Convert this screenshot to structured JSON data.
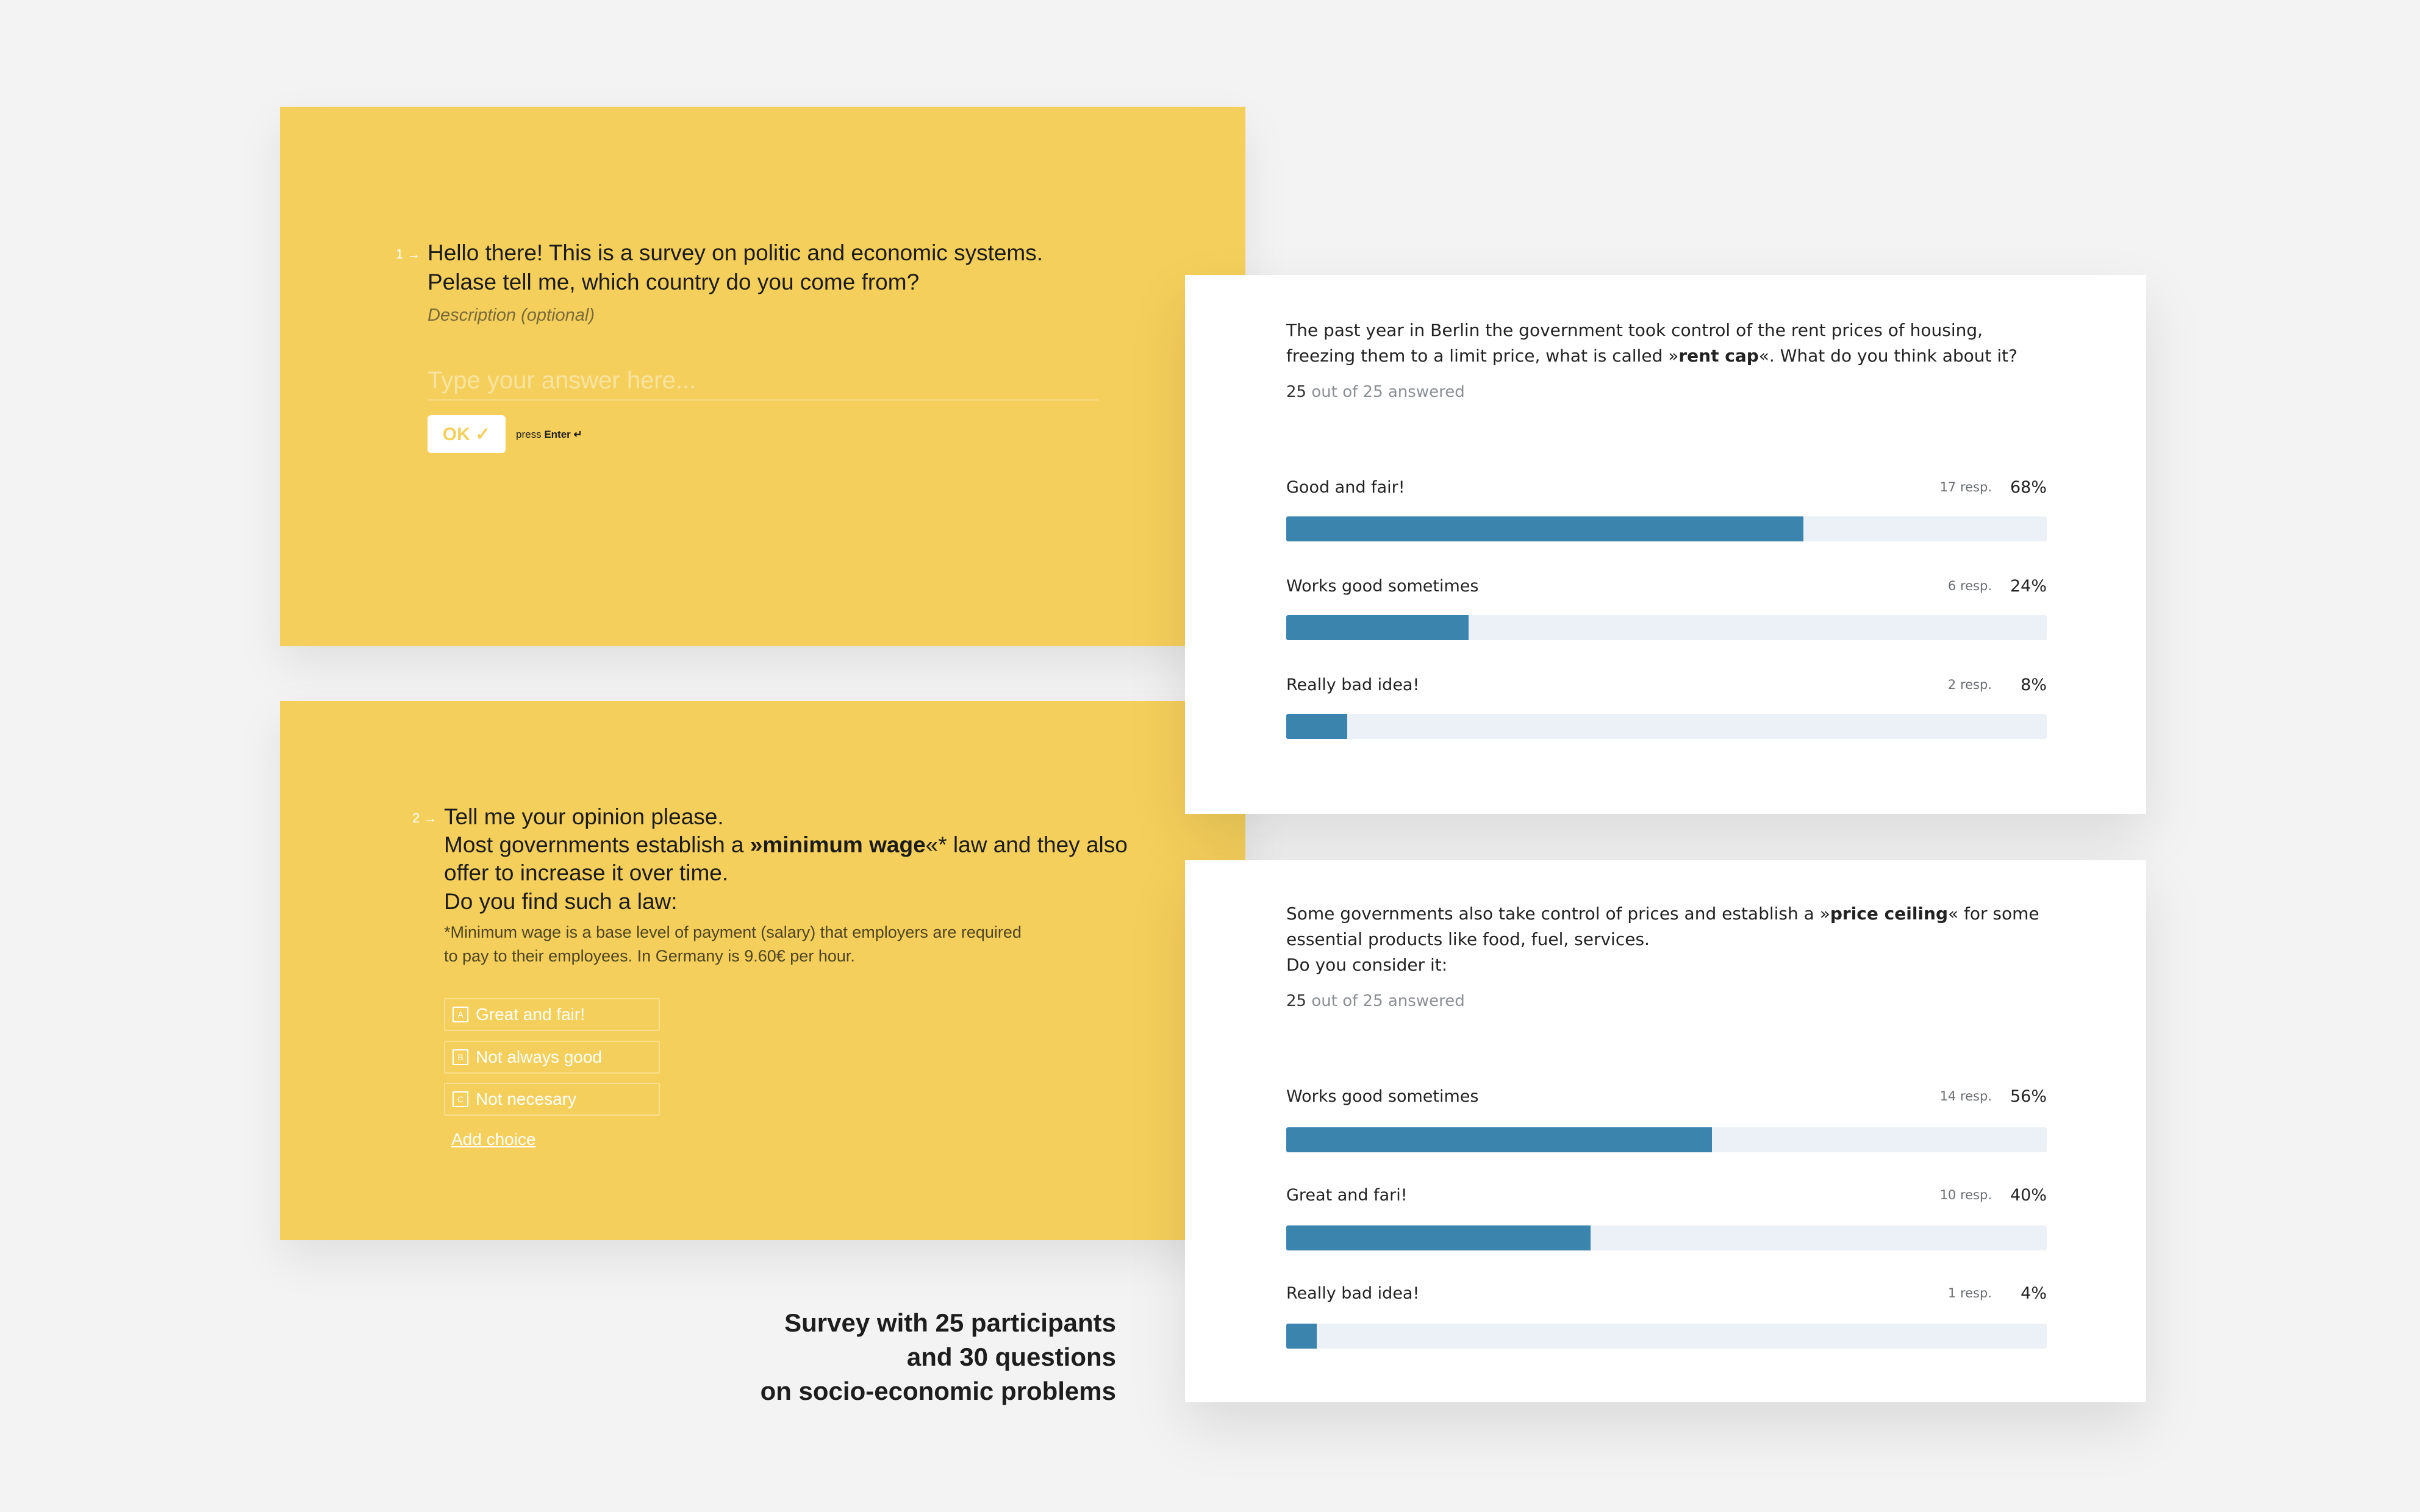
{
  "question1": {
    "number": "1 →",
    "text_line1": "Hello there! This is a survey on politic and economic systems.",
    "text_line2": "Pelase tell me, which country do you come from?",
    "description": "Description (optional)",
    "answer_placeholder": "Type your answer here...",
    "ok_label": "OK ✓",
    "press_hint_prefix": "press",
    "press_hint_key": "Enter ↵"
  },
  "question2": {
    "number": "2 →",
    "line1": "Tell me your opinion please.",
    "line2_pre": "Most governments establish a ",
    "line2_bold": "»minimum wage",
    "line2_post": "«* law and they also",
    "line3": "offer to increase it over time.",
    "line4": "Do you find such a law:",
    "note_line1": "*Minimum wage is a base level of payment (salary) that employers are required",
    "note_line2": "to pay to their employees. In Germany is 9.60€ per hour.",
    "choices": [
      {
        "key": "A",
        "label": "Great and fair!"
      },
      {
        "key": "B",
        "label": "Not always good"
      },
      {
        "key": "C",
        "label": "Not necesary"
      }
    ],
    "add_choice": "Add choice"
  },
  "result1": {
    "question_pre": "The past year in Berlin the government took control of the rent prices of housing, freezing them to a limit price, what is called »",
    "question_bold": "rent cap",
    "question_post": "«. What do you think about it?",
    "answered_count": "25",
    "answered_suffix": " out of 25 answered",
    "options": [
      {
        "label": "Good and fair!",
        "resp": "17 resp.",
        "pct_label": "68%",
        "percent": 68
      },
      {
        "label": "Works good sometimes",
        "resp": "6 resp.",
        "pct_label": "24%",
        "percent": 24
      },
      {
        "label": "Really bad idea!",
        "resp": "2 resp.",
        "pct_label": "8%",
        "percent": 8
      }
    ]
  },
  "result2": {
    "question_pre": "Some governments also take control of prices and establish a »",
    "question_bold": "price ceiling",
    "question_post": "« for some essential products like food, fuel, services.",
    "question_line3": "Do you consider it:",
    "answered_count": "25",
    "answered_suffix": " out of 25 answered",
    "options": [
      {
        "label": "Works good sometimes",
        "resp": "14 resp.",
        "pct_label": "56%",
        "percent": 56
      },
      {
        "label": "Great and fari!",
        "resp": "10 resp.",
        "pct_label": "40%",
        "percent": 40
      },
      {
        "label": "Really bad idea!",
        "resp": "1 resp.",
        "pct_label": "4%",
        "percent": 4
      }
    ]
  },
  "caption": {
    "line1": "Survey with 25 participants",
    "line2": "and 30 questions",
    "line3": "on socio-economic problems"
  },
  "colors": {
    "yellow": "#f5cf5b",
    "bar_fill": "#3a84ae",
    "bar_track": "#ebf1f6"
  }
}
